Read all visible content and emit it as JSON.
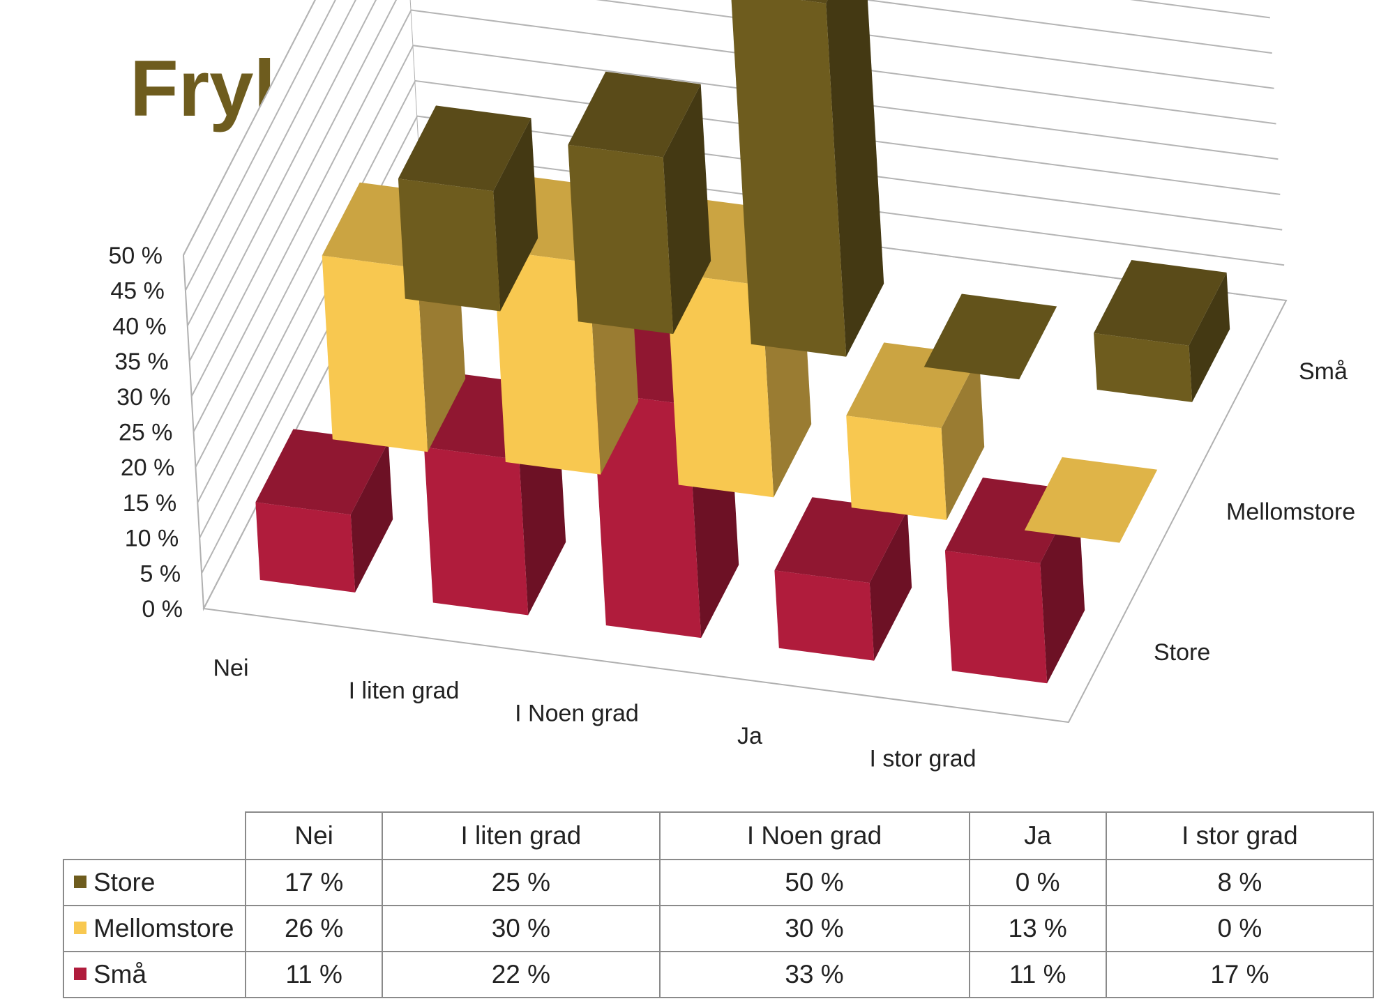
{
  "chart_data": {
    "type": "bar",
    "subtype": "3d-column",
    "title": "Frykten  er  forskjellig  fordelt",
    "categories": [
      "Nei",
      "I liten grad",
      "I Noen grad",
      "Ja",
      "I stor grad"
    ],
    "series": [
      {
        "name": "Store",
        "color": "#6e5c1e",
        "values": [
          17,
          25,
          50,
          0,
          8
        ]
      },
      {
        "name": "Mellomstore",
        "color": "#f8c850",
        "values": [
          26,
          30,
          30,
          13,
          0
        ]
      },
      {
        "name": "Små",
        "color": "#b01c3c",
        "values": [
          11,
          22,
          33,
          11,
          17
        ]
      }
    ],
    "ylim": [
      0,
      50
    ],
    "yticks": [
      "0 %",
      "5 %",
      "10 %",
      "15 %",
      "20 %",
      "25 %",
      "30 %",
      "35 %",
      "40 %",
      "45 %",
      "50 %"
    ],
    "depth_labels": [
      "Små",
      "Mellomstore",
      "Store"
    ],
    "value_format": "{v} %",
    "grid": true,
    "legend": "data-table-below"
  }
}
